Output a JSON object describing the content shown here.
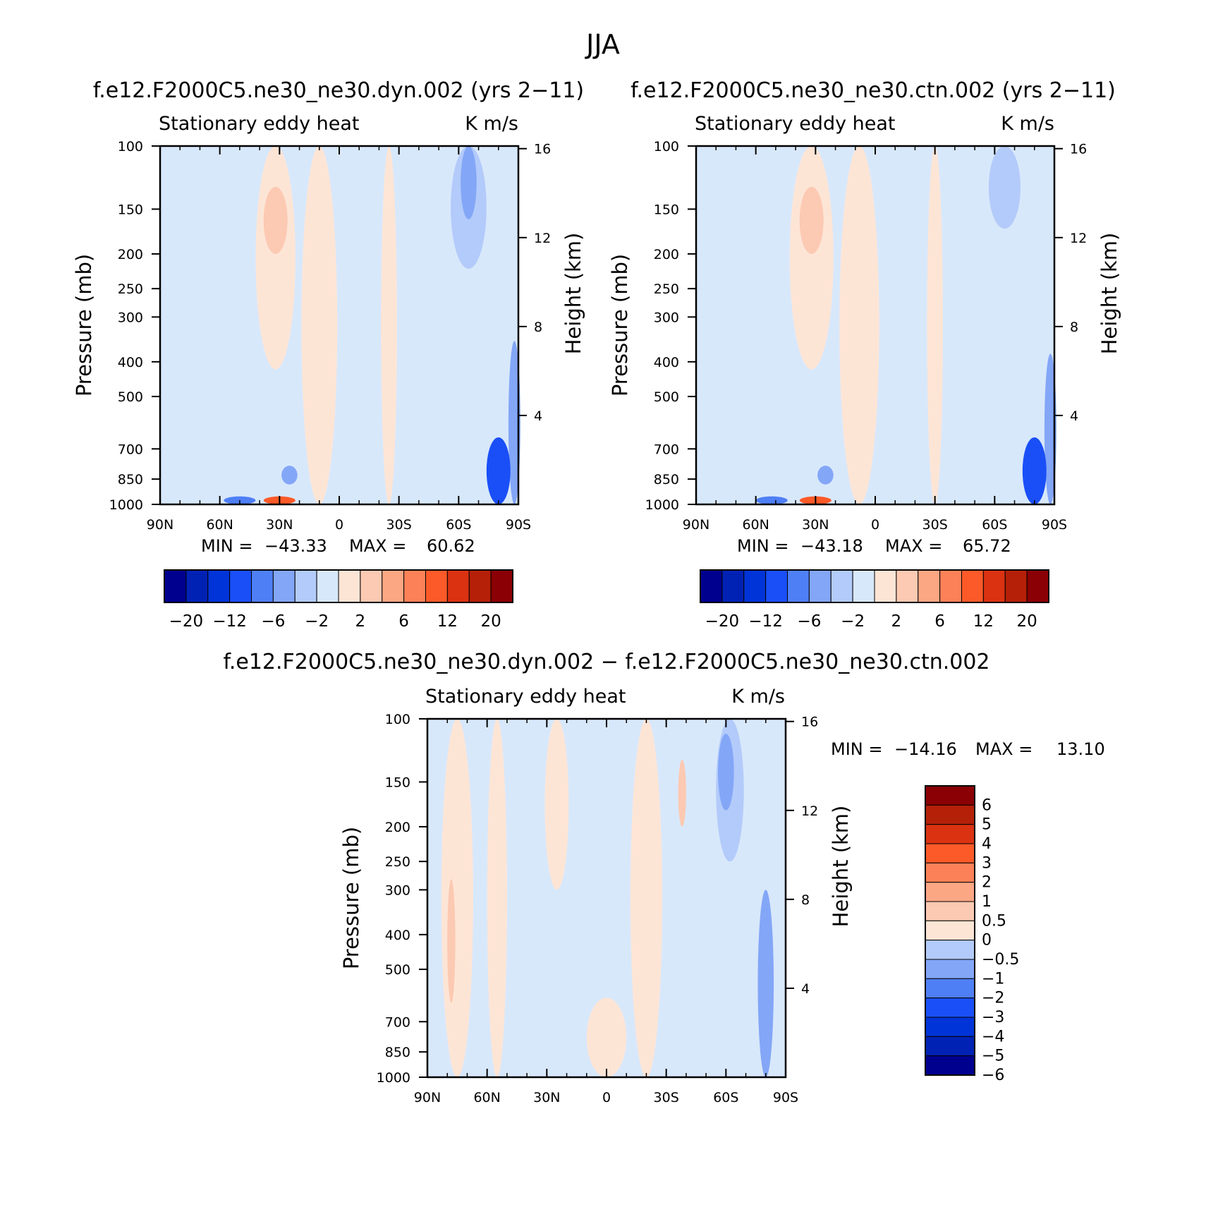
{
  "figure": {
    "title": "JJA"
  },
  "palettes": {
    "full": [
      "#00008f",
      "#0022b4",
      "#0034d8",
      "#1a4ff7",
      "#4f7ff5",
      "#83a6f7",
      "#b3cbfa",
      "#d8e8fb",
      "#fde5d6",
      "#fcc9b2",
      "#fca784",
      "#fc8158",
      "#fc5a28",
      "#db3212",
      "#b52008",
      "#8a0004"
    ],
    "diff": [
      "#00008f",
      "#0022b4",
      "#0034d8",
      "#1a4ff7",
      "#4f7ff5",
      "#83a6f7",
      "#b3cbfa",
      "#d8e8fb",
      "#fde5d6",
      "#fcc9b2",
      "#fca784",
      "#fc8158",
      "#fc5a28",
      "#db3212",
      "#b52008",
      "#8a0004"
    ]
  },
  "chart_data": [
    {
      "type": "heatmap",
      "id": "dyn",
      "title": "f.e12.F2000C5.ne30_ne30.dyn.002 (yrs 2−11)",
      "left_label": "Stationary eddy heat",
      "right_label": "K m/s",
      "xlabel": "",
      "ylabel": "Pressure (mb)",
      "y2label": "Height (km)",
      "x_ticks": [
        "90N",
        "60N",
        "30N",
        "0",
        "30S",
        "60S",
        "90S"
      ],
      "y_ticks": [
        "100",
        "150",
        "200",
        "250",
        "300",
        "400",
        "500",
        "700",
        "850",
        "1000"
      ],
      "y2_ticks": [
        "16",
        "12",
        "8",
        "4"
      ],
      "ylim": [
        100,
        1000
      ],
      "y_scale": "log",
      "stats": {
        "min_label": "MIN =",
        "min": "−43.33",
        "max_label": "MAX =",
        "max": "60.62"
      },
      "colorbar": {
        "orientation": "horizontal",
        "palette": "full",
        "labels": [
          "−20",
          "−12",
          "−6",
          "−2",
          "2",
          "6",
          "12",
          "20"
        ]
      }
    },
    {
      "type": "heatmap",
      "id": "ctn",
      "title": "f.e12.F2000C5.ne30_ne30.ctn.002 (yrs 2−11)",
      "left_label": "Stationary eddy heat",
      "right_label": "K m/s",
      "xlabel": "",
      "ylabel": "Pressure (mb)",
      "y2label": "Height (km)",
      "x_ticks": [
        "90N",
        "60N",
        "30N",
        "0",
        "30S",
        "60S",
        "90S"
      ],
      "y_ticks": [
        "100",
        "150",
        "200",
        "250",
        "300",
        "400",
        "500",
        "700",
        "850",
        "1000"
      ],
      "y2_ticks": [
        "16",
        "12",
        "8",
        "4"
      ],
      "ylim": [
        100,
        1000
      ],
      "y_scale": "log",
      "stats": {
        "min_label": "MIN =",
        "min": "−43.18",
        "max_label": "MAX =",
        "max": "65.72"
      },
      "colorbar": {
        "orientation": "horizontal",
        "palette": "full",
        "labels": [
          "−20",
          "−12",
          "−6",
          "−2",
          "2",
          "6",
          "12",
          "20"
        ]
      }
    },
    {
      "type": "heatmap",
      "id": "diff",
      "title": "f.e12.F2000C5.ne30_ne30.dyn.002 − f.e12.F2000C5.ne30_ne30.ctn.002",
      "left_label": "Stationary eddy heat",
      "right_label": "K m/s",
      "xlabel": "",
      "ylabel": "Pressure (mb)",
      "y2label": "Height (km)",
      "x_ticks": [
        "90N",
        "60N",
        "30N",
        "0",
        "30S",
        "60S",
        "90S"
      ],
      "y_ticks": [
        "100",
        "150",
        "200",
        "250",
        "300",
        "400",
        "500",
        "700",
        "850",
        "1000"
      ],
      "y2_ticks": [
        "16",
        "12",
        "8",
        "4"
      ],
      "ylim": [
        100,
        1000
      ],
      "y_scale": "log",
      "stats": {
        "min_label": "MIN =",
        "min": "−14.16",
        "max_label": "MAX =",
        "max": "13.10"
      },
      "colorbar": {
        "orientation": "vertical",
        "palette": "diff",
        "labels": [
          "6",
          "5",
          "4",
          "3",
          "2",
          "1",
          "0.5",
          "0",
          "−0.5",
          "−1",
          "−2",
          "−3",
          "−4",
          "−5",
          "−6"
        ]
      }
    }
  ]
}
